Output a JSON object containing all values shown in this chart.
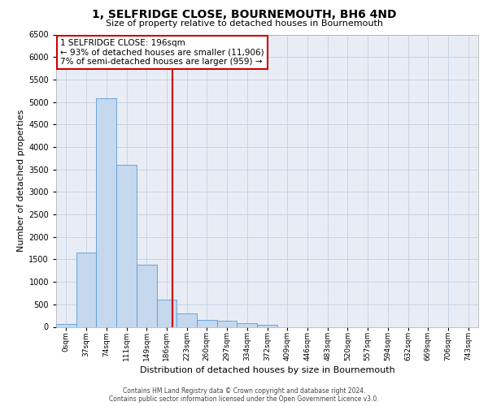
{
  "title": "1, SELFRIDGE CLOSE, BOURNEMOUTH, BH6 4ND",
  "subtitle": "Size of property relative to detached houses in Bournemouth",
  "xlabel": "Distribution of detached houses by size in Bournemouth",
  "ylabel": "Number of detached properties",
  "footer_line1": "Contains HM Land Registry data © Crown copyright and database right 2024.",
  "footer_line2": "Contains public sector information licensed under the Open Government Licence v3.0.",
  "categories": [
    "0sqm",
    "37sqm",
    "74sqm",
    "111sqm",
    "149sqm",
    "186sqm",
    "223sqm",
    "260sqm",
    "297sqm",
    "334sqm",
    "372sqm",
    "409sqm",
    "446sqm",
    "483sqm",
    "520sqm",
    "557sqm",
    "594sqm",
    "632sqm",
    "669sqm",
    "706sqm",
    "743sqm"
  ],
  "values": [
    55,
    1650,
    5080,
    3600,
    1380,
    600,
    300,
    150,
    130,
    80,
    40,
    0,
    0,
    0,
    0,
    0,
    0,
    0,
    0,
    0,
    0
  ],
  "bar_color": "#c5d8ee",
  "bar_edge_color": "#5b9bd5",
  "annotation_line1": "1 SELFRIDGE CLOSE: 196sqm",
  "annotation_line2": "← 93% of detached houses are smaller (11,906)",
  "annotation_line3": "7% of semi-detached houses are larger (959) →",
  "vline_color": "#cc0000",
  "vline_pos": 5.27,
  "ylim_max": 6500,
  "ytick_step": 500,
  "grid_color": "#c8d4e4",
  "bg_color": "#e8edf5",
  "ann_box_edge": "#cc0000",
  "title_fontsize": 10,
  "subtitle_fontsize": 8,
  "ylabel_fontsize": 8,
  "xlabel_fontsize": 8,
  "tick_fontsize": 7,
  "ann_fontsize": 7.5,
  "footer_fontsize": 5.5
}
